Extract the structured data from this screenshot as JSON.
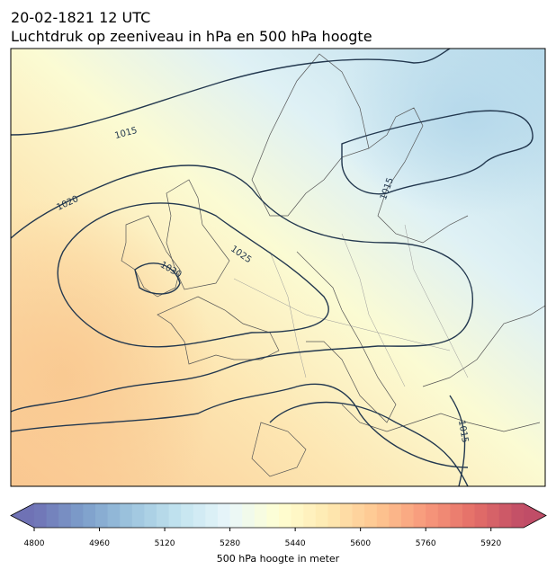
{
  "header": {
    "title": "20-02-1821 12 UTC",
    "subtitle": "Luchtdruk op zeeniveau in hPa en 500 hPa hoogte"
  },
  "contour_labels": [
    1015,
    1020,
    1025,
    1030,
    1015,
    1015
  ],
  "colorbar": {
    "label": "500 hPa hoogte in meter",
    "lim": [
      4800,
      6000
    ],
    "ticks": [
      4800,
      4960,
      5120,
      5280,
      5440,
      5600,
      5760,
      5920
    ],
    "colors": [
      "#313695",
      "#4575b4",
      "#74add1",
      "#abd9e9",
      "#e0f3f8",
      "#ffffbf",
      "#fee090",
      "#fdae61",
      "#f46d43",
      "#d73027",
      "#a50026"
    ]
  }
}
